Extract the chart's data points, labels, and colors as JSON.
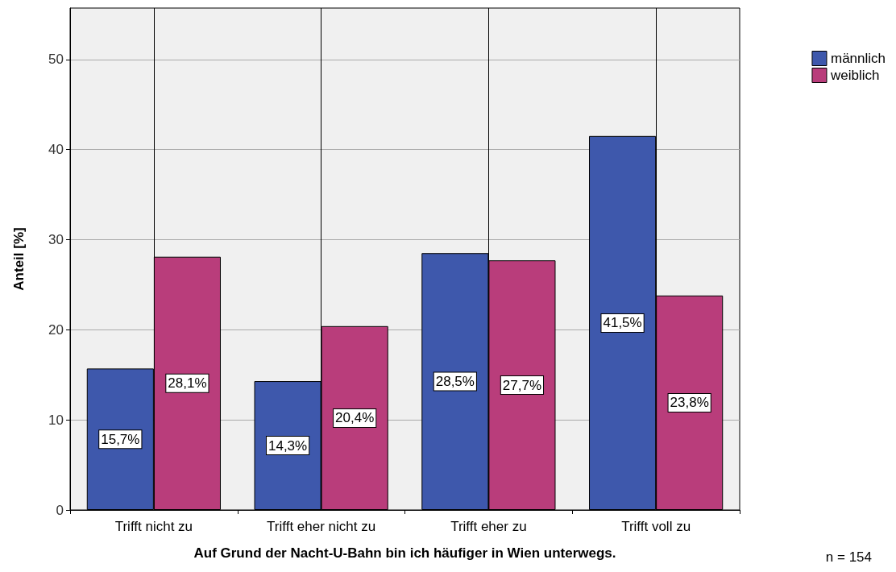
{
  "chart_data": {
    "type": "bar",
    "xlabel": "Auf Grund der Nacht-U-Bahn bin ich häufiger in Wien unterwegs.",
    "ylabel": "Anteil [%]",
    "categories": [
      "Trifft nicht zu",
      "Trifft eher nicht zu",
      "Trifft eher zu",
      "Trifft voll zu"
    ],
    "series": [
      {
        "name": "männlich",
        "color": "#3e58ac",
        "values": [
          15.7,
          14.3,
          28.5,
          41.5
        ],
        "value_labels": [
          "15,7%",
          "14,3%",
          "28,5%",
          "41,5%"
        ]
      },
      {
        "name": "weiblich",
        "color": "#b93d7b",
        "values": [
          28.1,
          20.4,
          27.7,
          23.8
        ],
        "value_labels": [
          "28,1%",
          "20,4%",
          "27,7%",
          "23,8%"
        ]
      }
    ],
    "ylim": [
      0,
      55.7
    ],
    "yticks": [
      0,
      10,
      20,
      30,
      40,
      50
    ],
    "grid": true,
    "legend": "top right",
    "annotations": [
      "n = 154"
    ]
  }
}
